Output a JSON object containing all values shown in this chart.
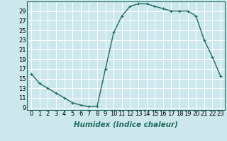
{
  "x": [
    0,
    1,
    2,
    3,
    4,
    5,
    6,
    7,
    8,
    9,
    10,
    11,
    12,
    13,
    14,
    15,
    16,
    17,
    18,
    19,
    20,
    21,
    22,
    23
  ],
  "y": [
    16,
    14,
    13,
    12,
    11,
    10,
    9.5,
    9.2,
    9.3,
    17,
    24.5,
    28,
    30,
    30.5,
    30.5,
    30,
    29.5,
    29,
    29,
    29,
    28,
    23,
    19.5,
    15.5
  ],
  "line_color": "#1e6b5e",
  "marker": "+",
  "marker_color": "#1e6b5e",
  "bg_color": "#cce8ec",
  "grid_color": "#ffffff",
  "xlabel": "Humidex (Indice chaleur)",
  "xlabel_style": "italic",
  "xlim": [
    -0.5,
    23.5
  ],
  "ylim": [
    8.5,
    31
  ],
  "yticks": [
    9,
    11,
    13,
    15,
    17,
    19,
    21,
    23,
    25,
    27,
    29
  ],
  "xticks": [
    0,
    1,
    2,
    3,
    4,
    5,
    6,
    7,
    8,
    9,
    10,
    11,
    12,
    13,
    14,
    15,
    16,
    17,
    18,
    19,
    20,
    21,
    22,
    23
  ],
  "tick_label_fontsize": 6.0,
  "xlabel_fontsize": 7.5,
  "linewidth": 1.0,
  "markersize": 3.5
}
